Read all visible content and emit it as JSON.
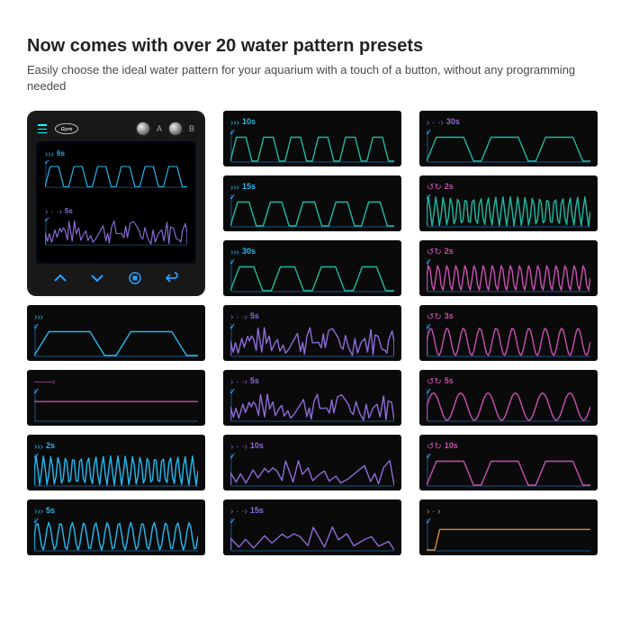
{
  "heading": "Now comes with over 20 water pattern presets",
  "subheading": "Easily choose the ideal water pattern for your aquarium with a touch of a button, without any programming needed",
  "colors": {
    "blue": "#22b8f0",
    "purple": "#8b6bd8",
    "pink": "#c94fb0",
    "teal": "#1fb8a0",
    "orange": "#d88a3a",
    "axis": "#2aa0ff"
  },
  "controller": {
    "brand": "Gyre",
    "dialA": "A",
    "dialB": "B",
    "presets": [
      {
        "iconColor": "#22b8f0",
        "label": "6s",
        "waveColor": "#22b8f0",
        "shape": "trapezoid6",
        "icon": "arrows-right"
      },
      {
        "iconColor": "#8b6bd8",
        "label": "5s",
        "waveColor": "#8b6bd8",
        "shape": "dense-random",
        "icon": "arrow-dots"
      }
    ],
    "buttons": [
      "up",
      "down",
      "stop",
      "back"
    ]
  },
  "tiles": [
    {
      "col": 2,
      "row": 1,
      "iconColor": "#22b8f0",
      "icon": "arrows-right",
      "label": "10s",
      "waveColor": "#1fb8a0",
      "shape": "trapezoid6"
    },
    {
      "col": 3,
      "row": 1,
      "iconColor": "#8b6bd8",
      "icon": "arrow-dots",
      "label": "30s",
      "waveColor": "#1fb8a0",
      "shape": "trapezoid4-wide"
    },
    {
      "col": 2,
      "row": 2,
      "iconColor": "#22b8f0",
      "icon": "arrows-right",
      "label": "15s",
      "waveColor": "#1fb8a0",
      "shape": "trapezoid5"
    },
    {
      "col": 3,
      "row": 2,
      "iconColor": "#c94fb0",
      "icon": "gyre",
      "label": "2s",
      "waveColor": "#1fb8a0",
      "shape": "dense-sine-tall"
    },
    {
      "col": 2,
      "row": 3,
      "iconColor": "#22b8f0",
      "icon": "arrows-right",
      "label": "30s",
      "waveColor": "#1fb8a0",
      "shape": "trapezoid4"
    },
    {
      "col": 3,
      "row": 3,
      "iconColor": "#c94fb0",
      "icon": "gyre",
      "label": "2s",
      "waveColor": "#c94fb0",
      "shape": "dense-sine"
    },
    {
      "col": 1,
      "row": 4,
      "iconColor": "#22b8f0",
      "icon": "arrows-right",
      "label": "",
      "waveColor": "#22b8f0",
      "shape": "trapezoid3-wide"
    },
    {
      "col": 2,
      "row": 4,
      "iconColor": "#8b6bd8",
      "icon": "arrow-dots",
      "label": "5s",
      "waveColor": "#8b6bd8",
      "shape": "dense-random"
    },
    {
      "col": 3,
      "row": 4,
      "iconColor": "#c94fb0",
      "icon": "gyre",
      "label": "3s",
      "waveColor": "#c94fb0",
      "shape": "sine-med"
    },
    {
      "col": 1,
      "row": 5,
      "iconColor": "#c94fb0",
      "icon": "arrow-right",
      "label": "",
      "waveColor": "#c94fb0",
      "shape": "flat-line"
    },
    {
      "col": 2,
      "row": 5,
      "iconColor": "#8b6bd8",
      "icon": "arrow-dots",
      "label": "5s",
      "waveColor": "#8b6bd8",
      "shape": "dense-random2"
    },
    {
      "col": 3,
      "row": 5,
      "iconColor": "#c94fb0",
      "icon": "gyre",
      "label": "5s",
      "waveColor": "#c94fb0",
      "shape": "sine-slow"
    },
    {
      "col": 1,
      "row": 6,
      "iconColor": "#22b8f0",
      "icon": "arrows-right",
      "label": "2s",
      "waveColor": "#22b8f0",
      "shape": "dense-sine-tall"
    },
    {
      "col": 2,
      "row": 6,
      "iconColor": "#8b6bd8",
      "icon": "arrow-dots",
      "label": "10s",
      "waveColor": "#8b6bd8",
      "shape": "random-mid"
    },
    {
      "col": 3,
      "row": 6,
      "iconColor": "#c94fb0",
      "icon": "gyre",
      "label": "10s",
      "waveColor": "#c94fb0",
      "shape": "trapezoid4-low"
    },
    {
      "col": 1,
      "row": 7,
      "iconColor": "#22b8f0",
      "icon": "arrows-right",
      "label": "5s",
      "waveColor": "#22b8f0",
      "shape": "sine-15"
    },
    {
      "col": 2,
      "row": 7,
      "iconColor": "#8b6bd8",
      "icon": "arrow-dots",
      "label": "15s",
      "waveColor": "#8b6bd8",
      "shape": "random-sparse"
    },
    {
      "col": 3,
      "row": 7,
      "iconColor": "#d88a3a",
      "icon": "arrow-wave",
      "label": "",
      "waveColor": "#d88a3a",
      "shape": "flat-step"
    }
  ]
}
